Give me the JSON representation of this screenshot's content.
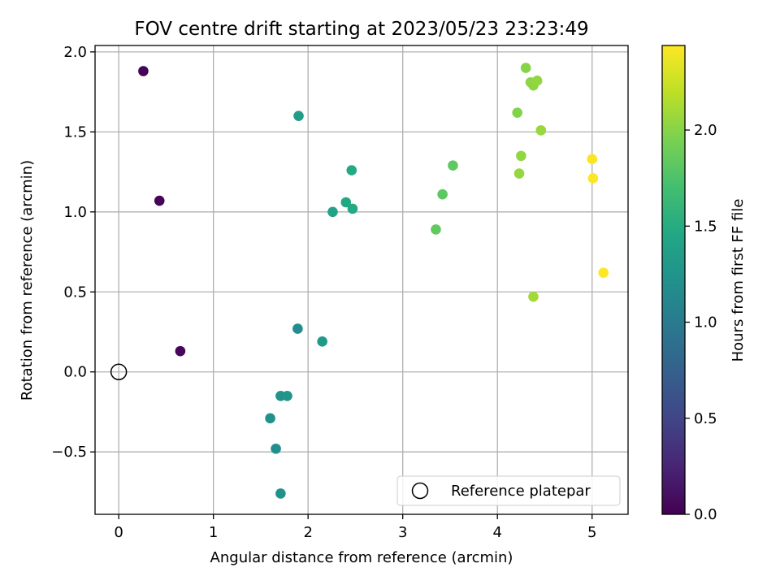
{
  "chart_data": {
    "type": "scatter",
    "title": "FOV centre drift starting at 2023/05/23 23:23:49",
    "xlabel": "Angular distance from reference (arcmin)",
    "ylabel": "Rotation from reference (arcmin)",
    "xlim": [
      -0.25,
      5.38
    ],
    "ylim": [
      -0.89,
      2.04
    ],
    "xticks": [
      0,
      1,
      2,
      3,
      4,
      5
    ],
    "xtick_labels": [
      "0",
      "1",
      "2",
      "3",
      "4",
      "5"
    ],
    "yticks": [
      -0.5,
      0.0,
      0.5,
      1.0,
      1.5,
      2.0
    ],
    "ytick_labels": [
      "−0.5",
      "0.0",
      "0.5",
      "1.0",
      "1.5",
      "2.0"
    ],
    "grid": true,
    "legend": {
      "position": "lower-right",
      "entries": [
        "Reference platepar"
      ]
    },
    "reference_point": {
      "x": 0,
      "y": 0,
      "label": "Reference platepar"
    },
    "colorbar": {
      "label": "Hours from first FF file",
      "colormap": "viridis",
      "range": [
        0,
        2.44
      ],
      "ticks": [
        0.0,
        0.5,
        1.0,
        1.5,
        2.0
      ],
      "tick_labels": [
        "0.0",
        "0.5",
        "1.0",
        "1.5",
        "2.0"
      ]
    },
    "points": [
      {
        "x": 0.26,
        "y": 1.88,
        "hours": 0.02
      },
      {
        "x": 0.43,
        "y": 1.07,
        "hours": 0.03
      },
      {
        "x": 0.65,
        "y": 0.13,
        "hours": 0.05
      },
      {
        "x": 1.71,
        "y": -0.76,
        "hours": 1.22
      },
      {
        "x": 1.66,
        "y": -0.48,
        "hours": 1.2
      },
      {
        "x": 1.6,
        "y": -0.29,
        "hours": 1.22
      },
      {
        "x": 1.71,
        "y": -0.15,
        "hours": 1.24
      },
      {
        "x": 1.78,
        "y": -0.15,
        "hours": 1.25
      },
      {
        "x": 1.89,
        "y": 0.27,
        "hours": 1.18
      },
      {
        "x": 2.15,
        "y": 0.19,
        "hours": 1.3
      },
      {
        "x": 1.9,
        "y": 1.6,
        "hours": 1.35
      },
      {
        "x": 2.26,
        "y": 1.0,
        "hours": 1.4
      },
      {
        "x": 2.4,
        "y": 1.06,
        "hours": 1.45
      },
      {
        "x": 2.46,
        "y": 1.26,
        "hours": 1.47
      },
      {
        "x": 2.47,
        "y": 1.02,
        "hours": 1.48
      },
      {
        "x": 3.35,
        "y": 0.89,
        "hours": 1.84
      },
      {
        "x": 3.42,
        "y": 1.11,
        "hours": 1.82
      },
      {
        "x": 3.53,
        "y": 1.29,
        "hours": 1.83
      },
      {
        "x": 4.21,
        "y": 1.62,
        "hours": 1.98
      },
      {
        "x": 4.3,
        "y": 1.9,
        "hours": 2.0
      },
      {
        "x": 4.35,
        "y": 1.81,
        "hours": 2.02
      },
      {
        "x": 4.38,
        "y": 1.79,
        "hours": 2.03
      },
      {
        "x": 4.42,
        "y": 1.82,
        "hours": 2.04
      },
      {
        "x": 4.46,
        "y": 1.51,
        "hours": 2.06
      },
      {
        "x": 4.25,
        "y": 1.35,
        "hours": 2.04
      },
      {
        "x": 4.23,
        "y": 1.24,
        "hours": 2.05
      },
      {
        "x": 4.38,
        "y": 0.47,
        "hours": 2.1
      },
      {
        "x": 5.0,
        "y": 1.33,
        "hours": 2.42
      },
      {
        "x": 5.01,
        "y": 1.21,
        "hours": 2.43
      },
      {
        "x": 5.12,
        "y": 0.62,
        "hours": 2.44
      }
    ]
  }
}
